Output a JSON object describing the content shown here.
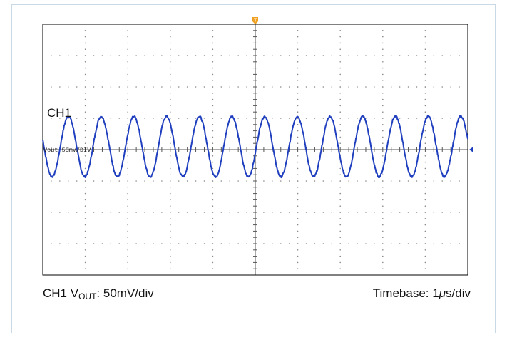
{
  "chart_data": {
    "type": "line",
    "title": "",
    "channel_label": "CH1",
    "trace_label": "Vout  50mV/DIV",
    "caption_left": {
      "prefix": "CH1 V",
      "subscript": "OUT",
      "suffix": ": 50mV/div"
    },
    "caption_right": {
      "prefix": "Timebase: 1",
      "mu": "μ",
      "suffix": "s/div"
    },
    "x_divisions": 10,
    "y_divisions": 8,
    "xlim": [
      0,
      10
    ],
    "ylim": [
      -4,
      4
    ],
    "xunit": "div (1 μs/div)",
    "yunit": "div (50 mV/div)",
    "series": [
      {
        "waveform": "sine",
        "amplitude_div": 0.96,
        "offset_div": 0.1,
        "cycles_per_div": 1.3,
        "phase_deg": 167,
        "color": "#1f3fbf"
      }
    ],
    "grid": "dotted",
    "colors": {
      "trace": "#1f3fbf",
      "grid_dots": "#8a8a8a",
      "frame": "#000000",
      "trigger": "#f0a020",
      "border": "#c8d8e4"
    }
  }
}
